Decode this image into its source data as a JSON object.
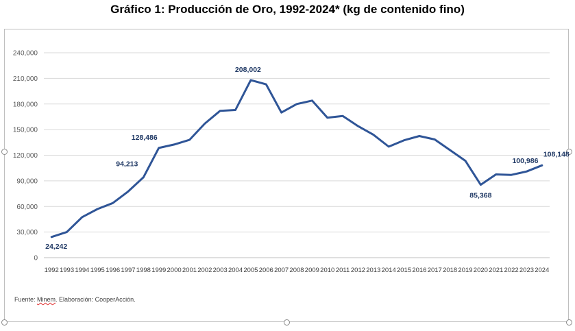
{
  "chart_data": {
    "type": "line",
    "title": "Gráfico 1: Producción de Oro, 1992-2024* (kg de contenido fino)",
    "xlabel": "",
    "ylabel": "",
    "ylim": [
      0,
      240000
    ],
    "y_ticks": [
      0,
      30000,
      60000,
      90000,
      120000,
      150000,
      180000,
      210000,
      240000
    ],
    "y_tick_labels": [
      "0",
      "30,000",
      "60,000",
      "90,000",
      "120,000",
      "150,000",
      "180,000",
      "210,000",
      "240,000"
    ],
    "grid": "horizontal",
    "line_color": "#2f5597",
    "x": [
      "1992",
      "1993",
      "1994",
      "1995",
      "1996",
      "1997",
      "1998",
      "1999",
      "2000",
      "2001",
      "2002",
      "2003",
      "2004",
      "2005",
      "2006",
      "2007",
      "2008",
      "2009",
      "2010",
      "2011",
      "2012",
      "2013",
      "2014",
      "2015",
      "2016",
      "2017",
      "2018",
      "2019",
      "2020",
      "2021",
      "2022",
      "2023",
      "2024"
    ],
    "series": [
      {
        "values": [
          24242,
          30000,
          47500,
          57000,
          64000,
          77500,
          94213,
          128486,
          132500,
          138000,
          157000,
          172000,
          173000,
          208002,
          203000,
          170000,
          180000,
          184000,
          164000,
          166000,
          154000,
          144000,
          130000,
          137500,
          142500,
          138500,
          126000,
          113500,
          85368,
          97500,
          97000,
          100986,
          108148
        ]
      }
    ],
    "annotations": [
      {
        "year": "1992",
        "label": "24,242"
      },
      {
        "year": "1998",
        "label": "94,213"
      },
      {
        "year": "1999",
        "label": "128,486"
      },
      {
        "year": "2005",
        "label": "208,002"
      },
      {
        "year": "2020",
        "label": "85,368"
      },
      {
        "year": "2023",
        "label": "100,986"
      },
      {
        "year": "2024",
        "label": "108,148"
      }
    ]
  },
  "source": {
    "prefix": "Fuente: ",
    "minem": "Minem",
    "suffix": ". Elaboración: CooperAcción."
  }
}
